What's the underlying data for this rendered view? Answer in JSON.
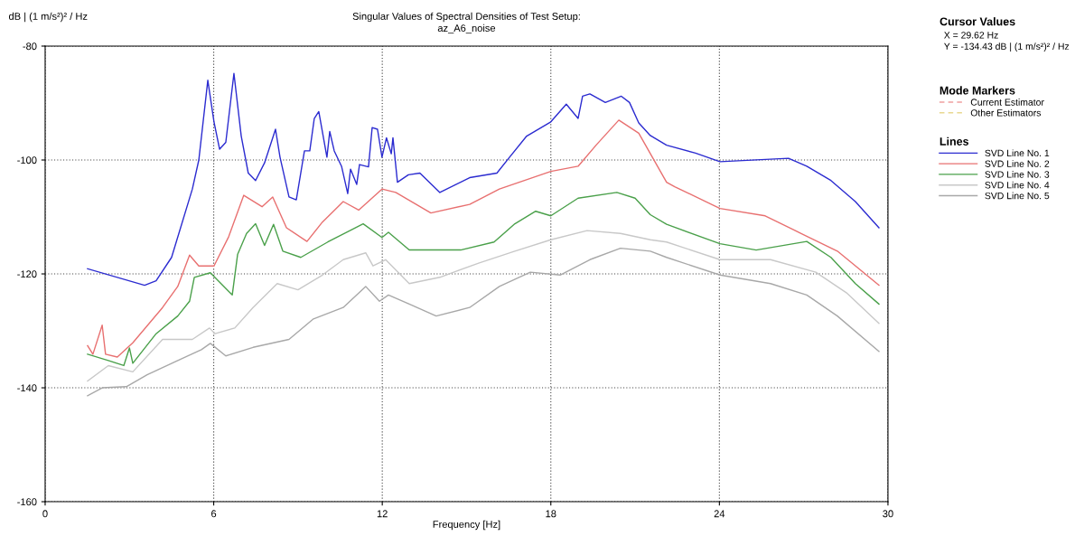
{
  "chart_data": {
    "type": "line",
    "title": "Singular Values of Spectral Densities of Test Setup:",
    "subtitle": "az_A6_noise",
    "xlabel": "Frequency [Hz]",
    "ylabel": "dB | (1 m/s²)² / Hz",
    "legend_title": "Lines",
    "annotations": [
      "Cursor Values",
      "X = 29.62 Hz",
      "Y = -134.43 dB | (1 m/s²)² / Hz",
      "Mode Markers"
    ],
    "xlim": [
      0,
      30
    ],
    "ylim": [
      -160,
      -80
    ],
    "xticks": [
      0,
      6,
      12,
      18,
      24,
      30
    ],
    "yticks": [
      -160,
      -140,
      -120,
      -100,
      -80
    ],
    "grid": true,
    "legend": "right",
    "series": [
      {
        "name": "SVD Line No. 1",
        "color": "#2b2bd0",
        "x": [
          1.51,
          3.54,
          3.95,
          4.5,
          5.24,
          5.47,
          5.79,
          6.01,
          6.21,
          6.43,
          6.72,
          6.98,
          7.23,
          7.49,
          7.81,
          8.2,
          8.36,
          8.68,
          8.94,
          9.23,
          9.42,
          9.58,
          9.74,
          10.03,
          10.13,
          10.29,
          10.55,
          10.77,
          10.87,
          11.09,
          11.19,
          11.51,
          11.64,
          11.83,
          11.99,
          12.15,
          12.32,
          12.38,
          12.54,
          12.93,
          13.34,
          14.05,
          15.11,
          16.08,
          16.5,
          17.14,
          18.0,
          18.55,
          18.97,
          19.13,
          19.39,
          19.94,
          20.51,
          20.8,
          21.13,
          21.54,
          22.12,
          23.15,
          24.02,
          26.46,
          27.11,
          27.97,
          28.84,
          29.68
        ],
        "values": [
          -119.1,
          -122.0,
          -121.2,
          -117.1,
          -105.1,
          -100.0,
          -86.0,
          -93.3,
          -98.1,
          -96.9,
          -84.8,
          -95.8,
          -102.3,
          -103.6,
          -100.5,
          -94.6,
          -99.5,
          -106.5,
          -107.0,
          -98.4,
          -98.4,
          -92.7,
          -91.5,
          -99.5,
          -95.0,
          -98.4,
          -101.1,
          -105.9,
          -101.6,
          -104.3,
          -100.8,
          -101.2,
          -94.3,
          -94.6,
          -99.5,
          -96.1,
          -98.9,
          -96.1,
          -103.9,
          -102.6,
          -102.3,
          -105.7,
          -103.1,
          -102.3,
          -99.7,
          -95.8,
          -93.3,
          -90.2,
          -92.7,
          -88.8,
          -88.4,
          -89.9,
          -88.8,
          -89.9,
          -93.5,
          -95.7,
          -97.4,
          -98.8,
          -100.3,
          -99.7,
          -101.1,
          -103.6,
          -107.3,
          -111.9
        ]
      },
      {
        "name": "SVD Line No. 2",
        "color": "#e87070",
        "x": [
          1.51,
          1.7,
          2.03,
          2.15,
          2.57,
          3.12,
          4.18,
          4.72,
          5.14,
          5.47,
          6.01,
          6.53,
          7.07,
          7.72,
          8.1,
          8.59,
          9.32,
          9.87,
          10.61,
          11.16,
          11.99,
          12.48,
          13.73,
          15.11,
          16.17,
          18.0,
          18.97,
          19.61,
          20.42,
          21.13,
          22.12,
          22.41,
          24.02,
          25.63,
          26.91,
          28.2,
          29.68
        ],
        "values": [
          -132.6,
          -134.1,
          -129.0,
          -134.1,
          -134.6,
          -132.1,
          -125.9,
          -122.2,
          -116.7,
          -118.6,
          -118.6,
          -113.5,
          -106.2,
          -108.2,
          -106.5,
          -111.9,
          -114.3,
          -110.9,
          -107.3,
          -108.8,
          -105.1,
          -105.7,
          -109.3,
          -107.8,
          -105.1,
          -102.0,
          -101.1,
          -97.4,
          -93.0,
          -95.3,
          -103.9,
          -104.7,
          -108.5,
          -109.8,
          -112.9,
          -116.0,
          -122.0
        ]
      },
      {
        "name": "SVD Line No. 3",
        "color": "#4aa04a",
        "x": [
          1.51,
          2.25,
          2.8,
          3.0,
          3.12,
          3.95,
          4.72,
          5.14,
          5.31,
          5.88,
          6.66,
          6.85,
          7.17,
          7.49,
          7.81,
          8.13,
          8.46,
          9.1,
          10.06,
          11.32,
          11.99,
          12.22,
          12.96,
          14.79,
          15.98,
          16.72,
          17.46,
          18.0,
          18.97,
          20.35,
          21.0,
          21.54,
          22.12,
          24.02,
          25.31,
          27.11,
          27.97,
          28.84,
          29.68
        ],
        "values": [
          -134.1,
          -135.2,
          -136.1,
          -133.0,
          -135.7,
          -130.5,
          -127.4,
          -124.8,
          -120.6,
          -119.8,
          -123.7,
          -116.6,
          -112.9,
          -111.2,
          -115.0,
          -111.3,
          -116.0,
          -117.1,
          -114.4,
          -111.2,
          -113.6,
          -112.7,
          -115.8,
          -115.8,
          -114.4,
          -111.2,
          -109.0,
          -109.8,
          -106.7,
          -105.7,
          -106.7,
          -109.6,
          -111.3,
          -114.7,
          -115.8,
          -114.3,
          -117.1,
          -121.7,
          -125.3
        ]
      },
      {
        "name": "SVD Line No. 4",
        "color": "#c8c8c8",
        "x": [
          1.51,
          2.25,
          3.12,
          4.18,
          5.24,
          5.85,
          6.05,
          6.75,
          7.4,
          8.26,
          9.0,
          9.87,
          10.61,
          11.41,
          11.67,
          12.12,
          12.96,
          14.05,
          15.43,
          16.72,
          18.0,
          19.29,
          20.48,
          21.54,
          22.12,
          24.02,
          25.82,
          27.43,
          28.52,
          29.68
        ],
        "values": [
          -138.8,
          -136.1,
          -137.2,
          -131.5,
          -131.5,
          -129.5,
          -130.5,
          -129.5,
          -125.9,
          -121.7,
          -122.8,
          -120.2,
          -117.5,
          -116.3,
          -118.6,
          -117.5,
          -121.7,
          -120.6,
          -118.1,
          -116.0,
          -114.0,
          -112.4,
          -112.9,
          -114.0,
          -114.4,
          -117.5,
          -117.5,
          -119.7,
          -123.3,
          -128.7
        ]
      },
      {
        "name": "SVD Line No. 5",
        "color": "#a8a8a8",
        "x": [
          1.51,
          2.03,
          2.89,
          3.63,
          4.72,
          5.56,
          5.88,
          6.43,
          7.4,
          8.68,
          9.55,
          10.61,
          11.41,
          11.9,
          12.22,
          12.96,
          13.92,
          15.11,
          16.17,
          17.27,
          18.33,
          19.39,
          20.48,
          21.54,
          22.12,
          24.02,
          25.82,
          27.11,
          28.2,
          29.68
        ],
        "values": [
          -141.4,
          -140.0,
          -139.8,
          -137.7,
          -135.2,
          -133.3,
          -132.2,
          -134.4,
          -132.9,
          -131.5,
          -127.9,
          -125.9,
          -122.2,
          -124.8,
          -123.7,
          -125.3,
          -127.4,
          -125.9,
          -122.2,
          -119.7,
          -120.2,
          -117.5,
          -115.5,
          -116.0,
          -117.1,
          -120.2,
          -121.7,
          -123.7,
          -127.4,
          -133.6
        ]
      },
      {
        "name": "Current Estimator",
        "color": "#f0a0a0",
        "line_style": "dashed"
      },
      {
        "name": "Other Estimators",
        "color": "#e8d890",
        "line_style": "dashed"
      }
    ]
  }
}
